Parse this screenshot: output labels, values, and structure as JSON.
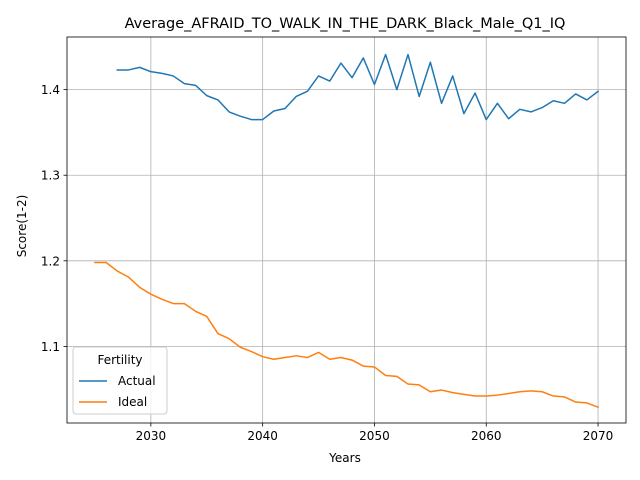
{
  "chart_data": {
    "type": "line",
    "title": "Average_AFRAID_TO_WALK_IN_THE_DARK_Black_Male_Q1_IQ",
    "xlabel": "Years",
    "ylabel": "Score(1-2)",
    "xlim": [
      2022.5,
      2072.5
    ],
    "ylim": [
      1.0105,
      1.4615
    ],
    "xticks": [
      2030,
      2040,
      2050,
      2060,
      2070
    ],
    "yticks": [
      1.1,
      1.2,
      1.3,
      1.4
    ],
    "grid": true,
    "legend": {
      "title": "Fertility",
      "position": "lower-left"
    },
    "series": [
      {
        "name": "Actual",
        "color": "#1f77b4",
        "x": [
          2027,
          2028,
          2029,
          2030,
          2031,
          2032,
          2033,
          2034,
          2035,
          2036,
          2037,
          2038,
          2039,
          2040,
          2041,
          2042,
          2043,
          2044,
          2045,
          2046,
          2047,
          2048,
          2049,
          2050,
          2051,
          2052,
          2053,
          2054,
          2055,
          2056,
          2057,
          2058,
          2059,
          2060,
          2061,
          2062,
          2063,
          2064,
          2065,
          2066,
          2067,
          2068,
          2069,
          2070
        ],
        "y": [
          1.423,
          1.423,
          1.426,
          1.421,
          1.419,
          1.416,
          1.407,
          1.405,
          1.393,
          1.388,
          1.374,
          1.369,
          1.365,
          1.365,
          1.375,
          1.378,
          1.392,
          1.398,
          1.416,
          1.41,
          1.431,
          1.414,
          1.437,
          1.406,
          1.441,
          1.4,
          1.441,
          1.392,
          1.432,
          1.384,
          1.416,
          1.372,
          1.396,
          1.365,
          1.384,
          1.366,
          1.377,
          1.374,
          1.379,
          1.387,
          1.384,
          1.395,
          1.388,
          1.398
        ]
      },
      {
        "name": "Ideal",
        "color": "#ff7f0e",
        "x": [
          2025,
          2026,
          2027,
          2028,
          2029,
          2030,
          2031,
          2032,
          2033,
          2034,
          2035,
          2036,
          2037,
          2038,
          2039,
          2040,
          2041,
          2042,
          2043,
          2044,
          2045,
          2046,
          2047,
          2048,
          2049,
          2050,
          2051,
          2052,
          2053,
          2054,
          2055,
          2056,
          2057,
          2058,
          2059,
          2060,
          2061,
          2062,
          2063,
          2064,
          2065,
          2066,
          2067,
          2068,
          2069,
          2070
        ],
        "y": [
          1.198,
          1.198,
          1.188,
          1.181,
          1.169,
          1.161,
          1.155,
          1.15,
          1.15,
          1.141,
          1.135,
          1.115,
          1.109,
          1.099,
          1.094,
          1.088,
          1.085,
          1.087,
          1.089,
          1.087,
          1.093,
          1.085,
          1.087,
          1.084,
          1.077,
          1.076,
          1.066,
          1.065,
          1.056,
          1.055,
          1.047,
          1.049,
          1.046,
          1.044,
          1.042,
          1.042,
          1.043,
          1.045,
          1.047,
          1.048,
          1.047,
          1.042,
          1.041,
          1.035,
          1.034,
          1.029
        ]
      }
    ]
  }
}
